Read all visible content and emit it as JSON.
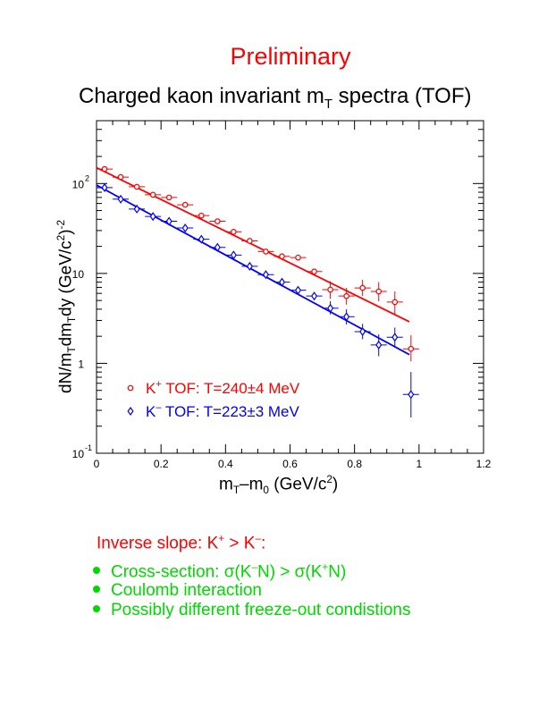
{
  "header": {
    "preliminary": "Preliminary",
    "title_main": "Charged kaon invariant m",
    "title_sub": "T",
    "title_tail": " spectra (TOF)"
  },
  "axes": {
    "x_a": "m",
    "x_a_sub": "T",
    "x_b": "–m",
    "x_b_sub": "0",
    "x_c": " (GeV/c",
    "x_c_sup": "2",
    "x_d": ")",
    "y_a": "dN/m",
    "y_a_sub": "T",
    "y_b": "dm",
    "y_b_sub": "T",
    "y_c": "dy (GeV/c",
    "y_c_sup": "2",
    "y_d": ")",
    "y_d_sup": "-2"
  },
  "colors": {
    "kplus": "#ff0000",
    "kminus": "#0000ff",
    "bullets": "#00d800",
    "frame": "#000000"
  },
  "notes": {
    "head_a": "Inverse slope: K",
    "head_a_sup": "+",
    "head_b": " > K",
    "head_b_sup": "–",
    "head_c": ":",
    "items": [
      {
        "a": "Cross-section: σ(K",
        "a_sup": "–",
        "b": "N) > σ(K",
        "b_sup": "+",
        "c": "N)"
      },
      {
        "a": "Coulomb interaction"
      },
      {
        "a": "Possibly different freeze-out condistions"
      }
    ]
  },
  "chart_data": {
    "type": "scatter",
    "xlabel": "mT–m0 (GeV/c2)",
    "ylabel": "dN/mTdmTdy (GeV/c2)-2",
    "xlim": [
      0,
      1.2
    ],
    "ylim": [
      0.1,
      500
    ],
    "ylog": true,
    "x_ticks": [
      "0",
      "0.2",
      "0.4",
      "0.6",
      "0.8",
      "1",
      "1.2"
    ],
    "y_ticks": [
      {
        "value": 0.1,
        "base": "10",
        "exp": "-1"
      },
      {
        "value": 1,
        "base": "1",
        "exp": ""
      },
      {
        "value": 10,
        "base": "10",
        "exp": ""
      },
      {
        "value": 100,
        "base": "10",
        "exp": "2"
      }
    ],
    "legend_placement": "bottom-left",
    "series": [
      {
        "name": "K+ TOF: T=240±4 MeV",
        "legend_a": "K",
        "legend_sup": "+",
        "legend_b": " TOF: T=240±4 MeV",
        "marker": "circle",
        "color": "#ff0000",
        "x": [
          0.025,
          0.075,
          0.125,
          0.175,
          0.225,
          0.275,
          0.325,
          0.375,
          0.425,
          0.475,
          0.525,
          0.575,
          0.625,
          0.675,
          0.725,
          0.775,
          0.825,
          0.875,
          0.925,
          0.975
        ],
        "y": [
          145,
          118,
          92,
          75,
          70,
          58,
          44,
          38,
          29,
          23,
          17.5,
          15.5,
          15,
          10.5,
          6.6,
          5.6,
          6.9,
          6.3,
          4.8,
          1.45
        ],
        "yerr_lo": [
          0,
          0,
          0,
          0,
          0,
          0,
          0,
          0,
          0,
          0,
          0,
          0,
          0,
          0,
          1.4,
          1.1,
          1.3,
          1.4,
          1.3,
          0.4
        ],
        "yerr_hi": [
          0,
          0,
          0,
          0,
          0,
          0,
          0,
          0,
          0,
          0,
          0,
          0,
          0,
          0,
          1.6,
          1.3,
          1.6,
          1.7,
          1.5,
          0.6
        ],
        "fit": {
          "x0": 0.0,
          "y0": 150,
          "x1": 0.97,
          "y1": 2.9
        }
      },
      {
        "name": "K– TOF: T=223±3 MeV",
        "legend_a": "K",
        "legend_sup": "–",
        "legend_b": " TOF: T=223±3 MeV",
        "marker": "diamond",
        "color": "#0000ff",
        "x": [
          0.025,
          0.075,
          0.125,
          0.175,
          0.225,
          0.275,
          0.325,
          0.375,
          0.425,
          0.475,
          0.525,
          0.575,
          0.625,
          0.675,
          0.725,
          0.775,
          0.825,
          0.875,
          0.925,
          0.975
        ],
        "y": [
          90,
          67,
          52,
          43,
          38,
          32,
          24,
          19.5,
          16,
          12,
          9.7,
          8,
          6.5,
          5.6,
          4.1,
          3.3,
          2.25,
          1.6,
          1.95,
          0.45
        ],
        "yerr_lo": [
          0,
          0,
          0,
          0,
          0,
          0,
          0,
          0,
          0,
          0,
          0,
          0,
          0,
          0,
          0.6,
          0.6,
          0.4,
          0.4,
          0.45,
          0.2
        ],
        "yerr_hi": [
          0,
          0,
          0,
          0,
          0,
          0,
          0,
          0,
          0,
          0,
          0,
          0,
          0,
          0,
          0.8,
          0.7,
          0.5,
          0.5,
          0.55,
          0.35
        ],
        "fit": {
          "x0": 0.0,
          "y0": 96,
          "x1": 0.97,
          "y1": 1.25
        }
      }
    ]
  }
}
